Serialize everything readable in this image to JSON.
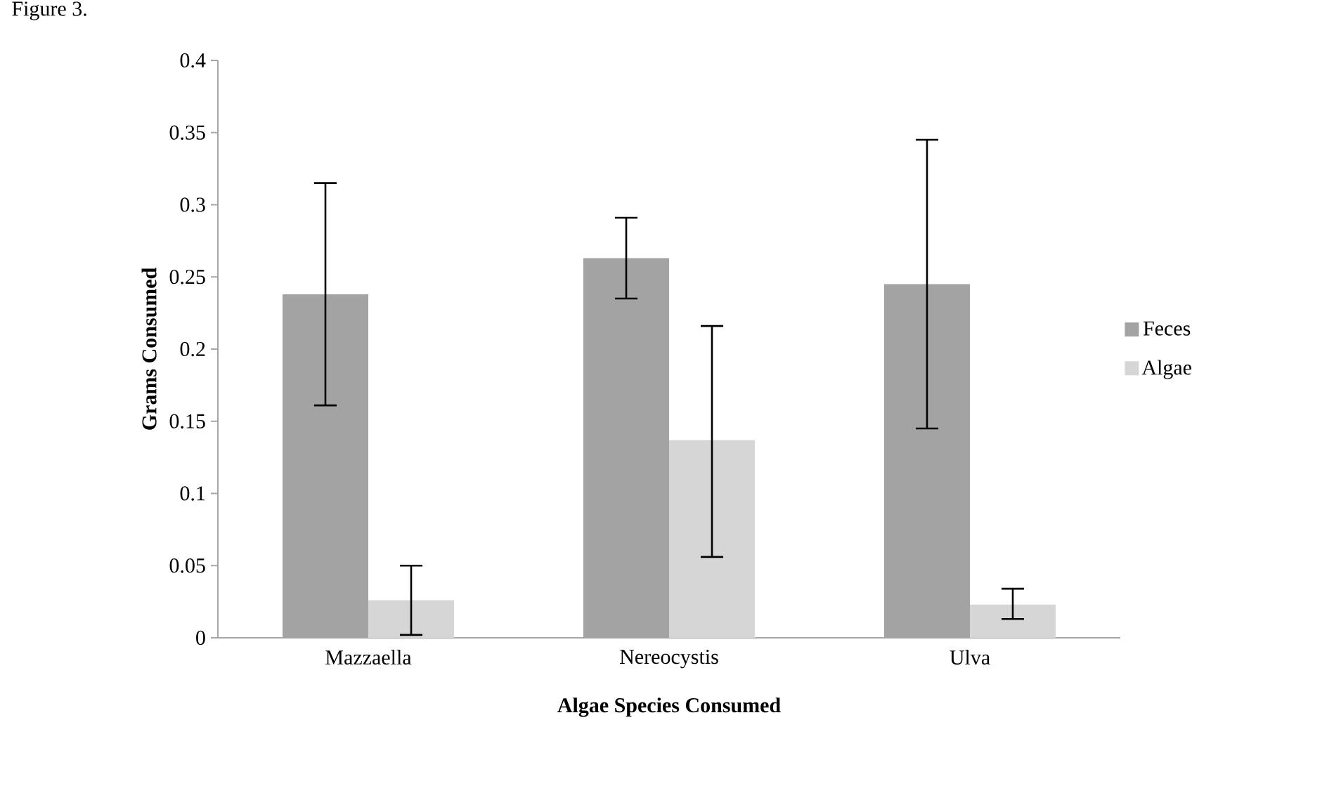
{
  "chart_data": {
    "type": "bar",
    "annotations": [
      "Figure 3."
    ],
    "xlabel": "Algae Species Consumed",
    "ylabel": "Grams Consumed",
    "categories": [
      "Mazzaella",
      "Nereocystis",
      "Ulva"
    ],
    "series": [
      {
        "name": "Feces",
        "color": "#a3a3a3",
        "values": [
          0.238,
          0.263,
          0.245
        ],
        "errors": [
          [
            0.161,
            0.315
          ],
          [
            0.235,
            0.291
          ],
          [
            0.145,
            0.345
          ]
        ]
      },
      {
        "name": "Algae",
        "color": "#d6d6d6",
        "values": [
          0.026,
          0.137,
          0.023
        ],
        "errors": [
          [
            0.002,
            0.05
          ],
          [
            0.056,
            0.216
          ],
          [
            0.013,
            0.034
          ]
        ]
      }
    ],
    "ylim": [
      0,
      0.4
    ],
    "yticks": [
      0,
      0.05,
      0.1,
      0.15,
      0.2,
      0.25,
      0.3,
      0.35,
      0.4
    ],
    "grid": false,
    "legend": "right"
  }
}
